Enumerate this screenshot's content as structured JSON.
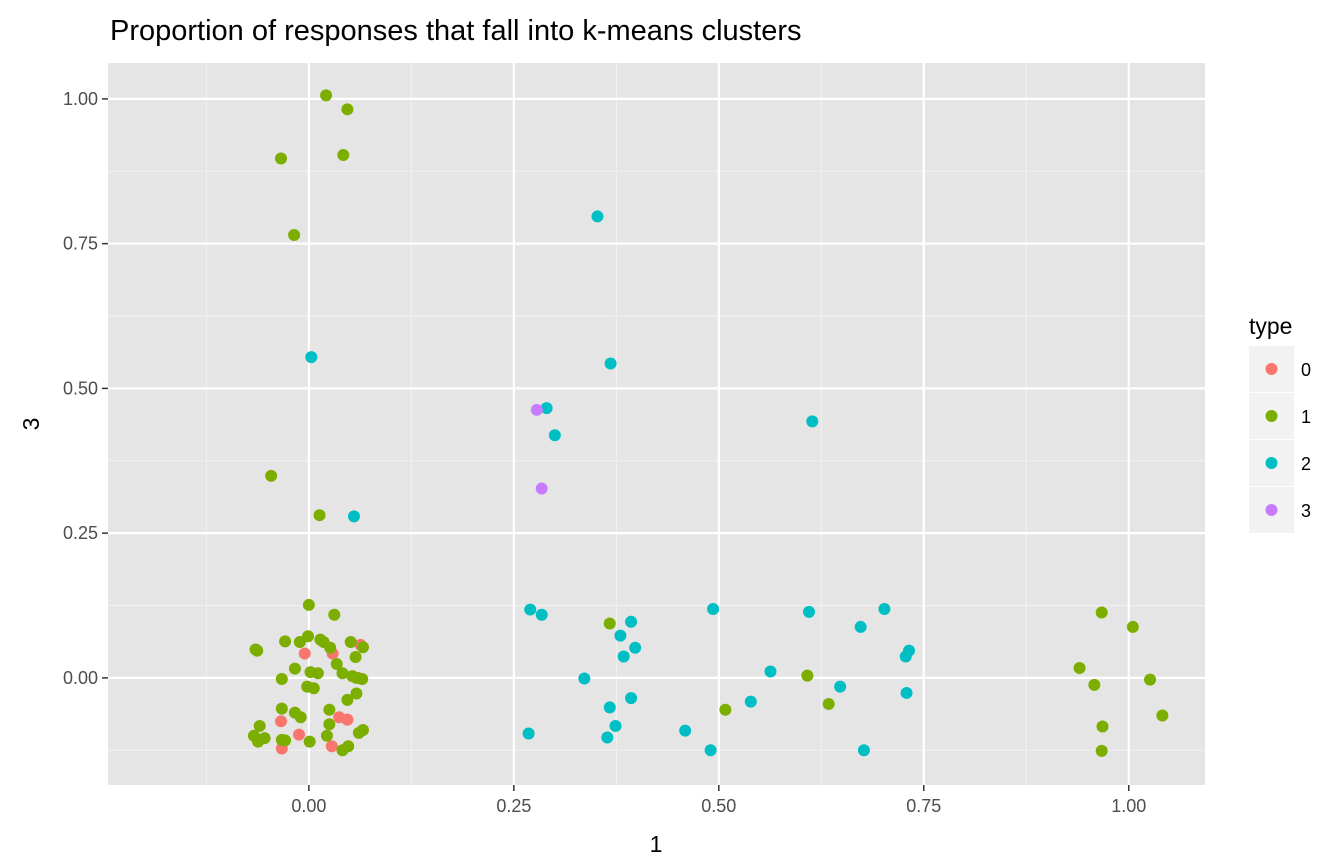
{
  "chart_data": {
    "type": "scatter",
    "title": "Proportion of responses that fall into k-means clusters",
    "xlabel": "1",
    "ylabel": "3",
    "xlim": [
      -0.245,
      1.093
    ],
    "ylim": [
      -0.185,
      1.062
    ],
    "x_ticks": [
      0.0,
      0.25,
      0.5,
      0.75,
      1.0
    ],
    "x_tick_labels": [
      "0.00",
      "0.25",
      "0.50",
      "0.75",
      "1.00"
    ],
    "y_ticks": [
      0.0,
      0.25,
      0.5,
      0.75,
      1.0
    ],
    "y_tick_labels": [
      "0.00",
      "0.25",
      "0.50",
      "0.75",
      "1.00"
    ],
    "grid": true,
    "background": "#e5e5e5",
    "legend": {
      "title": "type",
      "position": "right",
      "entries": [
        {
          "label": "0",
          "color": "#F8766D"
        },
        {
          "label": "1",
          "color": "#7CAE00"
        },
        {
          "label": "2",
          "color": "#00BFC4"
        },
        {
          "label": "3",
          "color": "#C77CFF"
        }
      ]
    },
    "series": [
      {
        "name": "0",
        "color": "#F8766D",
        "points": [
          [
            0.063,
            0.057
          ],
          [
            -0.005,
            0.042
          ],
          [
            0.029,
            0.042
          ],
          [
            0.06,
            0.0
          ],
          [
            0.037,
            -0.068
          ],
          [
            0.047,
            -0.072
          ],
          [
            -0.034,
            -0.075
          ],
          [
            -0.012,
            -0.098
          ],
          [
            -0.033,
            -0.122
          ],
          [
            0.028,
            -0.118
          ]
        ]
      },
      {
        "name": "1",
        "color": "#7CAE00",
        "points": [
          [
            0.021,
            1.006
          ],
          [
            0.047,
            0.982
          ],
          [
            0.042,
            0.903
          ],
          [
            -0.034,
            0.897
          ],
          [
            -0.018,
            0.765
          ],
          [
            -0.046,
            0.349
          ],
          [
            0.013,
            0.281
          ],
          [
            -0.0,
            0.126
          ],
          [
            0.031,
            0.109
          ],
          [
            -0.001,
            0.072
          ],
          [
            -0.011,
            0.062
          ],
          [
            0.018,
            0.062
          ],
          [
            0.026,
            0.052
          ],
          [
            0.014,
            0.066
          ],
          [
            -0.029,
            0.063
          ],
          [
            0.051,
            0.062
          ],
          [
            0.066,
            0.053
          ],
          [
            -0.065,
            0.049
          ],
          [
            -0.063,
            0.047
          ],
          [
            0.057,
            0.036
          ],
          [
            0.034,
            0.024
          ],
          [
            -0.017,
            0.016
          ],
          [
            0.002,
            0.01
          ],
          [
            0.011,
            0.008
          ],
          [
            0.041,
            0.008
          ],
          [
            0.053,
            0.003
          ],
          [
            0.058,
            0.0
          ],
          [
            0.065,
            -0.002
          ],
          [
            -0.033,
            -0.002
          ],
          [
            -0.002,
            -0.015
          ],
          [
            0.006,
            -0.018
          ],
          [
            0.058,
            -0.027
          ],
          [
            0.047,
            -0.038
          ],
          [
            -0.033,
            -0.053
          ],
          [
            -0.017,
            -0.06
          ],
          [
            0.025,
            -0.055
          ],
          [
            -0.01,
            -0.068
          ],
          [
            0.025,
            -0.08
          ],
          [
            -0.06,
            -0.083
          ],
          [
            0.066,
            -0.09
          ],
          [
            0.061,
            -0.095
          ],
          [
            -0.067,
            -0.1
          ],
          [
            0.022,
            -0.1
          ],
          [
            -0.054,
            -0.104
          ],
          [
            -0.033,
            -0.107
          ],
          [
            -0.029,
            -0.108
          ],
          [
            -0.062,
            -0.11
          ],
          [
            0.001,
            -0.11
          ],
          [
            0.048,
            -0.118
          ],
          [
            0.041,
            -0.125
          ],
          [
            0.367,
            0.094
          ],
          [
            0.508,
            -0.055
          ],
          [
            0.608,
            0.004
          ],
          [
            0.634,
            -0.045
          ],
          [
            0.967,
            0.113
          ],
          [
            1.005,
            0.088
          ],
          [
            0.94,
            0.017
          ],
          [
            0.958,
            -0.012
          ],
          [
            1.026,
            -0.003
          ],
          [
            1.041,
            -0.065
          ],
          [
            0.968,
            -0.084
          ],
          [
            0.967,
            -0.126
          ]
        ]
      },
      {
        "name": "2",
        "color": "#00BFC4",
        "points": [
          [
            0.352,
            0.797
          ],
          [
            0.003,
            0.554
          ],
          [
            0.368,
            0.543
          ],
          [
            0.614,
            0.443
          ],
          [
            0.29,
            0.466
          ],
          [
            0.3,
            0.419
          ],
          [
            0.055,
            0.279
          ],
          [
            0.27,
            0.118
          ],
          [
            0.284,
            0.109
          ],
          [
            0.393,
            0.097
          ],
          [
            0.493,
            0.119
          ],
          [
            0.61,
            0.114
          ],
          [
            0.702,
            0.119
          ],
          [
            0.673,
            0.088
          ],
          [
            0.38,
            0.073
          ],
          [
            0.398,
            0.052
          ],
          [
            0.384,
            0.037
          ],
          [
            0.732,
            0.047
          ],
          [
            0.728,
            0.037
          ],
          [
            0.563,
            0.011
          ],
          [
            0.336,
            -0.001
          ],
          [
            0.648,
            -0.015
          ],
          [
            0.729,
            -0.026
          ],
          [
            0.393,
            -0.035
          ],
          [
            0.539,
            -0.041
          ],
          [
            0.367,
            -0.051
          ],
          [
            0.374,
            -0.083
          ],
          [
            0.459,
            -0.091
          ],
          [
            0.268,
            -0.096
          ],
          [
            0.364,
            -0.103
          ],
          [
            0.49,
            -0.125
          ],
          [
            0.677,
            -0.125
          ]
        ]
      },
      {
        "name": "3",
        "color": "#C77CFF",
        "points": [
          [
            0.278,
            0.463
          ],
          [
            0.284,
            0.327
          ]
        ]
      }
    ]
  }
}
